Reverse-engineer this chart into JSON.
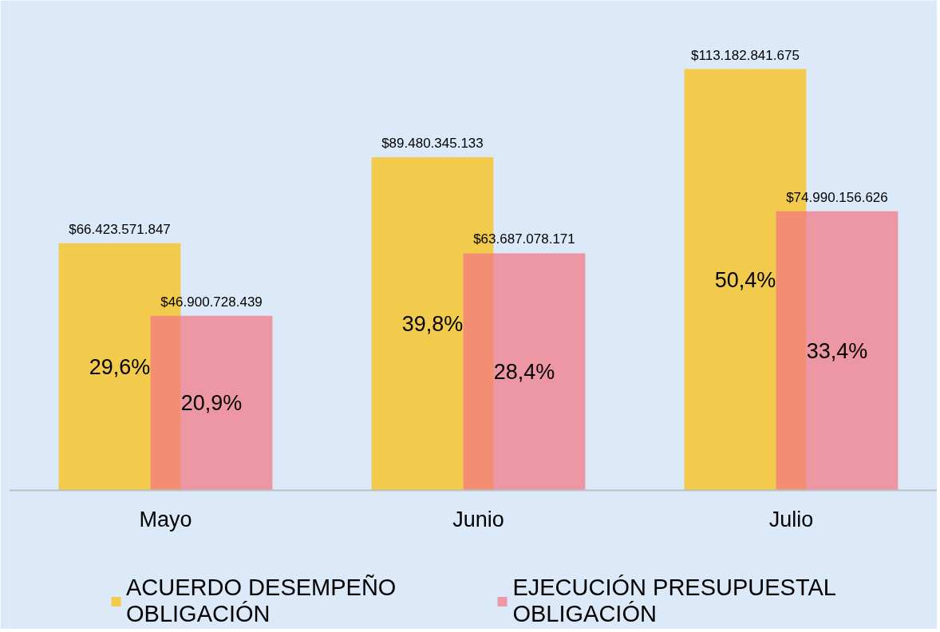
{
  "chart_data": {
    "type": "bar",
    "categories": [
      "Mayo",
      "Junio",
      "Julio"
    ],
    "series": [
      {
        "name": "ACUERDO DESEMPEÑO OBLIGACIÓN",
        "color": "#f2cb4b",
        "values": [
          66423571847,
          89480345133,
          113182841675
        ],
        "value_labels": [
          "$66.423.571.847",
          "$89.480.345.133",
          "$113.182.841.675"
        ]
      },
      {
        "name": "EJECUCIÓN PRESUPUESTAL OBLIGACIÓN",
        "color": "#ed96a3",
        "values": [
          46900728439,
          63687078171,
          74990156626
        ],
        "value_labels": [
          "$46.900.728.439",
          "$63.687.078.171",
          "$74.990.156.626"
        ]
      }
    ],
    "annotations": [
      "29,6%",
      "20,9%",
      "39,8%",
      "28,4%",
      "50,4%",
      "33,4%"
    ],
    "legend": "bottom"
  }
}
